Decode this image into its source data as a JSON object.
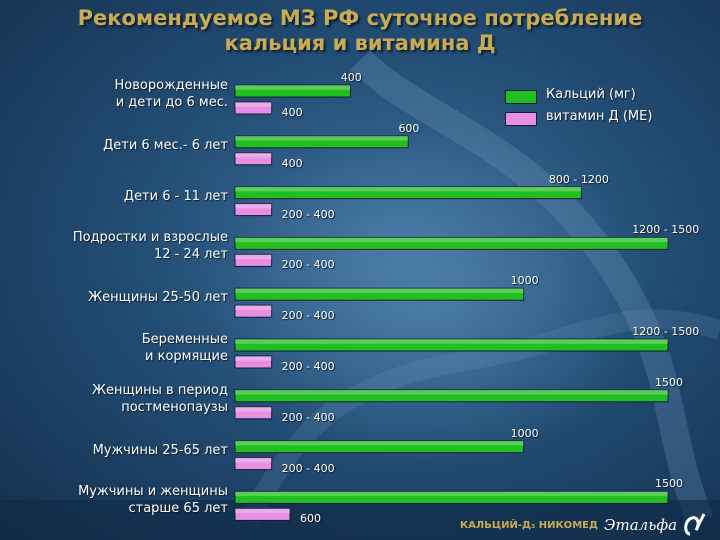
{
  "title_line1": "Рекомендуемое МЗ РФ суточное потребление",
  "title_line2": "кальция и витамина Д",
  "chart_data": {
    "type": "bar",
    "orientation": "horizontal",
    "grid": false,
    "legend_position": "top-right",
    "categories": [
      "Новорожденные\nи дети до 6 мес.",
      "Дети 6 мес.- 6 лет",
      "Дети 6 - 11 лет",
      "Подростки и взрослые\n12 - 24 лет",
      "Женщины 25-50 лет",
      "Беременные\nи кормящие",
      "Женщины в период\nпостменопаузы",
      "Мужчины 25-65 лет",
      "Мужчины и женщины\nстарше 65 лет"
    ],
    "series": [
      {
        "name": "Кальций (мг)",
        "color": "#22bf22",
        "values": [
          400,
          600,
          1200,
          1500,
          1000,
          1500,
          1500,
          1000,
          1500
        ],
        "labels": [
          "400",
          "600",
          "800 - 1200",
          "1200 - 1500",
          "1000",
          "1200 - 1500",
          "1500",
          "1000",
          "1500"
        ]
      },
      {
        "name": "витамин Д (МЕ)",
        "color": "#e88fe4",
        "values": [
          400,
          400,
          400,
          400,
          400,
          400,
          400,
          400,
          600
        ],
        "labels": [
          "400",
          "400",
          "200 - 400",
          "200 - 400",
          "200 - 400",
          "200 - 400",
          "200 - 400",
          "200 - 400",
          "600"
        ]
      }
    ]
  },
  "footer_text": "КАЛЬЦИЙ-Д₃ НИКОМЕД",
  "logo_text": "Этальфа"
}
